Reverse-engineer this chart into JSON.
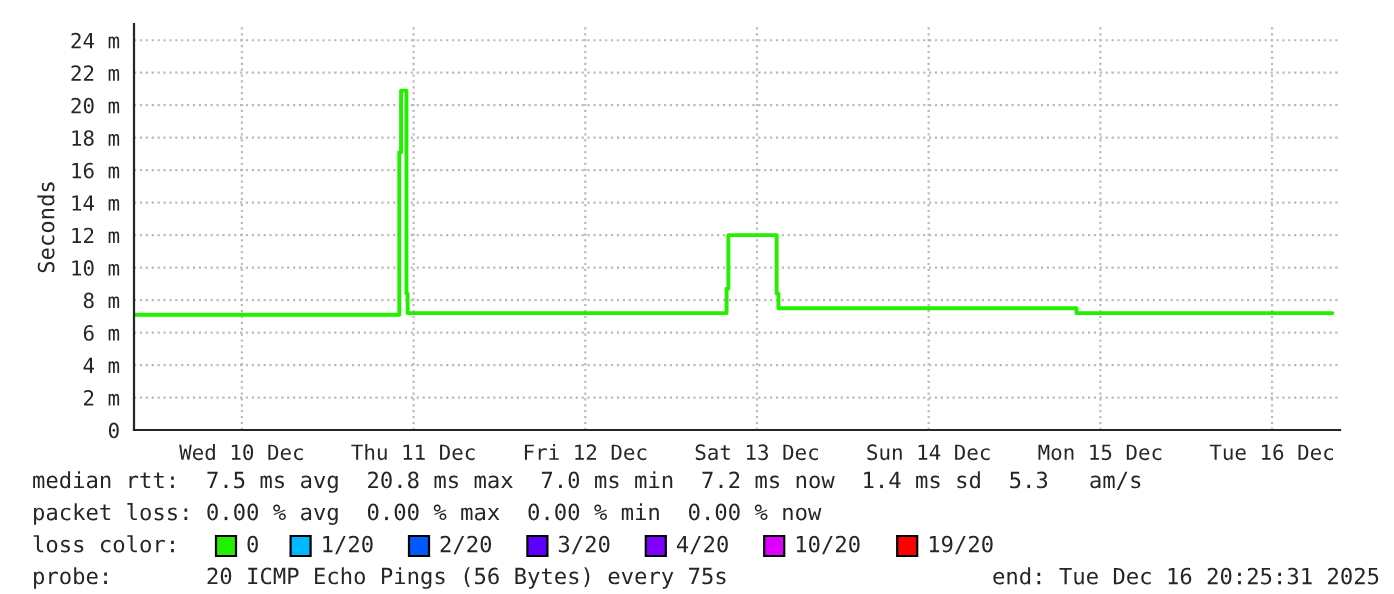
{
  "chart_data": {
    "type": "step",
    "ylabel": "Seconds",
    "x": [
      "2025-12-09T21:00",
      "2025-12-11T10:00",
      "2025-12-11T10:15",
      "2025-12-11T11:00",
      "2025-12-11T11:10",
      "2025-12-13T07:45",
      "2025-12-13T08:00",
      "2025-12-13T14:45",
      "2025-12-13T15:00",
      "2025-12-15T08:40",
      "2025-12-16T20:25"
    ],
    "series": [
      {
        "name": "0",
        "color": "#22f000",
        "values": [
          7.1,
          17.1,
          20.9,
          8.4,
          7.2,
          8.7,
          12.0,
          8.4,
          7.5,
          7.2,
          7.2
        ]
      },
      {
        "name": "1/20",
        "color": "#00b8ff",
        "values": [
          null,
          null,
          null,
          null,
          null,
          null,
          null,
          null,
          null,
          null,
          null
        ]
      },
      {
        "name": "2/20",
        "color": "#0059ff",
        "values": [
          null,
          null,
          null,
          null,
          null,
          null,
          null,
          null,
          null,
          null,
          null
        ]
      },
      {
        "name": "3/20",
        "color": "#5e00ff",
        "values": [
          null,
          null,
          null,
          null,
          null,
          null,
          null,
          null,
          null,
          null,
          null
        ]
      },
      {
        "name": "4/20",
        "color": "#7e00ff",
        "values": [
          null,
          null,
          null,
          null,
          null,
          null,
          null,
          null,
          null,
          null,
          null
        ]
      },
      {
        "name": "10/20",
        "color": "#dd00ff",
        "values": [
          null,
          null,
          null,
          null,
          null,
          null,
          null,
          null,
          null,
          null,
          null
        ]
      },
      {
        "name": "19/20",
        "color": "#ff0000",
        "values": [
          null,
          null,
          null,
          null,
          null,
          null,
          null,
          null,
          null,
          null,
          null
        ]
      }
    ],
    "legend_title": "loss color:",
    "legend": "bottom",
    "xlim": [
      "2025-12-09T20:55",
      "2025-12-16T21:30"
    ],
    "xticks": [
      {
        "value": "2025-12-10T12:00",
        "label": "Wed 10 Dec"
      },
      {
        "value": "2025-12-11T12:00",
        "label": "Thu 11 Dec"
      },
      {
        "value": "2025-12-12T12:00",
        "label": "Fri 12 Dec"
      },
      {
        "value": "2025-12-13T12:00",
        "label": "Sat 13 Dec"
      },
      {
        "value": "2025-12-14T12:00",
        "label": "Sun 14 Dec"
      },
      {
        "value": "2025-12-15T12:00",
        "label": "Mon 15 Dec"
      },
      {
        "value": "2025-12-16T12:00",
        "label": "Tue 16 Dec"
      }
    ],
    "ylim": [
      0,
      25
    ],
    "yticks": [
      0,
      {
        "value": 2,
        "label": "2 m"
      },
      {
        "value": 4,
        "label": "4 m"
      },
      {
        "value": 6,
        "label": "6 m"
      },
      {
        "value": 8,
        "label": "8 m"
      },
      {
        "value": 10,
        "label": "10 m"
      },
      {
        "value": 12,
        "label": "12 m"
      },
      {
        "value": 14,
        "label": "14 m"
      },
      {
        "value": 16,
        "label": "16 m"
      },
      {
        "value": 18,
        "label": "18 m"
      },
      {
        "value": 20,
        "label": "20 m"
      },
      {
        "value": 22,
        "label": "22 m"
      },
      {
        "value": 24,
        "label": "24 m"
      }
    ],
    "grid": true,
    "annotations": [
      "median rtt:  7.5 ms avg  20.8 ms max  7.0 ms min  7.2 ms now  1.4 ms sd  5.3   am/s",
      "packet loss: 0.00 % avg  0.00 % max  0.00 % min  0.00 % now",
      "probe:       20 ICMP Echo Pings (56 Bytes) every 75s",
      "end: Tue Dec 16 20:25:31 2025"
    ]
  }
}
